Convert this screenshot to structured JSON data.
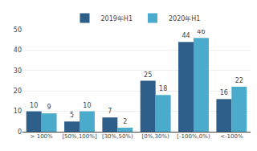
{
  "chart_data": {
    "type": "bar",
    "categories": [
      "> 100%",
      "[50%,100%]",
      "[30%,50%)",
      "[0%,30%)",
      "[-100%,0%)",
      "<-100%"
    ],
    "series": [
      {
        "name": "2019年H1",
        "color": "#2e5f8a",
        "values": [
          10,
          5,
          7,
          25,
          44,
          16
        ]
      },
      {
        "name": "2020年H1",
        "color": "#4aabcc",
        "values": [
          9,
          10,
          2,
          18,
          46,
          22
        ]
      }
    ],
    "ylim": [
      0,
      50
    ],
    "yticks": [
      0,
      10,
      20,
      30,
      40,
      50
    ],
    "grid": true,
    "legend": "top",
    "data_labels": true
  }
}
